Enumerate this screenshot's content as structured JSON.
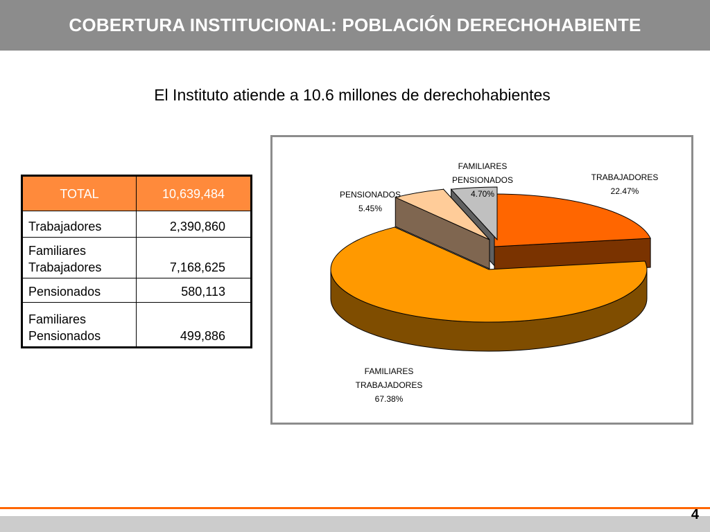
{
  "header": {
    "title": "COBERTURA INSTITUCIONAL: POBLACIÓN DERECHOHABIENTE"
  },
  "subtitle": "El Instituto atiende a 10.6 millones de derechohabientes",
  "table": {
    "header": {
      "label": "TOTAL",
      "value": "10,639,484"
    },
    "rows": [
      {
        "label": "Trabajadores",
        "value": "2,390,860"
      },
      {
        "label_lines": [
          "Familiares",
          "Trabajadores"
        ],
        "value": "7,168,625"
      },
      {
        "label": "Pensionados",
        "value": "580,113"
      },
      {
        "label_lines": [
          "Familiares",
          "Pensionados"
        ],
        "value": "499,886"
      }
    ]
  },
  "chart_data": {
    "type": "pie",
    "style": "3d-exploded",
    "slices": [
      {
        "label_lines": [
          "TRABAJADORES"
        ],
        "percent_label": "22.47%",
        "value": 22.47,
        "color": "#ff6600",
        "side_color": "#7a3300"
      },
      {
        "label_lines": [
          "FAMILIARES",
          "TRABAJADORES"
        ],
        "percent_label": "67.38%",
        "value": 67.38,
        "color": "#ff9900",
        "side_color": "#7f4d00"
      },
      {
        "label_lines": [
          "PENSIONADOS"
        ],
        "percent_label": "5.45%",
        "value": 5.45,
        "color": "#ffcc99",
        "side_color": "#7f6650"
      },
      {
        "label_lines": [
          "FAMILIARES",
          "PENSIONADOS"
        ],
        "percent_label": "4.70%",
        "value": 4.7,
        "color": "#c0c0c0",
        "side_color": "#606060"
      }
    ]
  },
  "footer": {
    "page_number": "4"
  }
}
